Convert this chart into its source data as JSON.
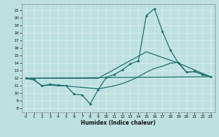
{
  "xlabel": "Humidex (Indice chaleur)",
  "xlim": [
    -0.5,
    23.5
  ],
  "ylim": [
    7.5,
    21.8
  ],
  "xticks": [
    0,
    1,
    2,
    3,
    4,
    5,
    6,
    7,
    8,
    9,
    10,
    11,
    12,
    13,
    14,
    15,
    16,
    17,
    18,
    19,
    20,
    21,
    22,
    23
  ],
  "yticks": [
    8,
    9,
    10,
    11,
    12,
    13,
    14,
    15,
    16,
    17,
    18,
    19,
    20,
    21
  ],
  "bg_color": "#bde0e0",
  "line_color": "#1a6b6b",
  "grid_color": "#d8eded",
  "line1_x": [
    0,
    1,
    2,
    3,
    4,
    5,
    6,
    7,
    8,
    9,
    10,
    11,
    12,
    13,
    14,
    15,
    16,
    17,
    18,
    19,
    20,
    21,
    22,
    23
  ],
  "line1_y": [
    12.0,
    11.8,
    11.0,
    11.2,
    11.1,
    11.0,
    9.9,
    9.8,
    8.6,
    10.5,
    12.1,
    12.5,
    13.1,
    13.9,
    14.3,
    20.3,
    21.2,
    18.2,
    15.7,
    14.0,
    12.8,
    12.9,
    12.5,
    12.2
  ],
  "line2_x": [
    0,
    1,
    2,
    3,
    4,
    5,
    6,
    7,
    8,
    9,
    10,
    11,
    12,
    13,
    14,
    15,
    16,
    17,
    18,
    19,
    20,
    21,
    22,
    23
  ],
  "line2_y": [
    12.0,
    11.8,
    11.0,
    11.1,
    11.0,
    11.0,
    10.9,
    10.8,
    10.7,
    10.6,
    10.8,
    11.0,
    11.3,
    11.7,
    12.2,
    12.8,
    13.3,
    13.6,
    14.0,
    14.1,
    12.8,
    12.9,
    12.5,
    12.2
  ],
  "line3_x": [
    0,
    23
  ],
  "line3_y": [
    12.0,
    12.2
  ],
  "line4_x": [
    0,
    9,
    15,
    19,
    23
  ],
  "line4_y": [
    12.0,
    12.0,
    15.5,
    14.0,
    12.2
  ]
}
